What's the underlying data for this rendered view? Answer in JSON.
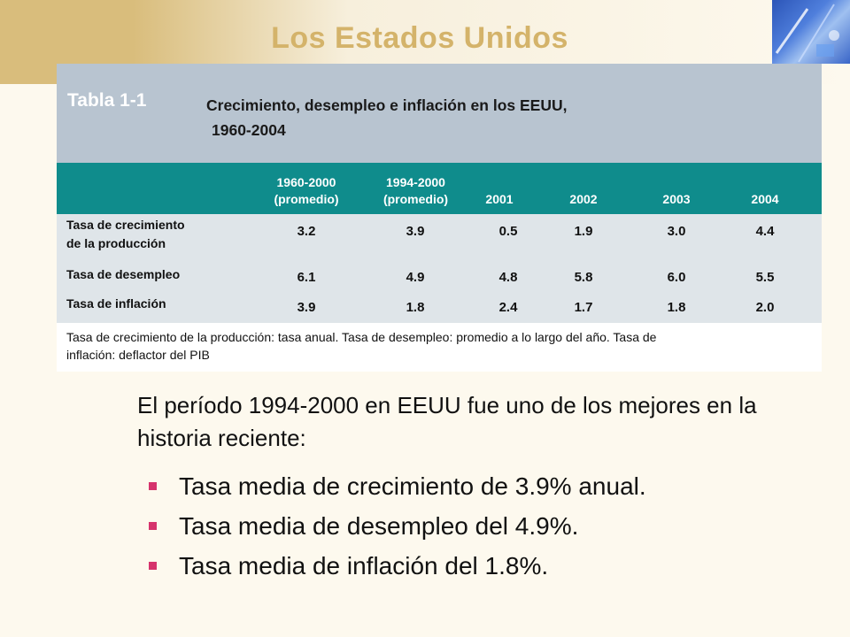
{
  "slide": {
    "title": "Los Estados Unidos"
  },
  "table": {
    "label": "Tabla 1-1",
    "title_line1": "Crecimiento, desempleo e inflación en los EEUU,",
    "title_line2": "1960-2004",
    "columns": [
      "1960-2000\n(promedio)",
      "1994-2000\n(promedio)",
      "2001",
      "2002",
      "2003",
      "2004"
    ],
    "rows": [
      {
        "label": "Tasa de crecimiento\nde la producción",
        "values": [
          "3.2",
          "3.9",
          "0.5",
          "1.9",
          "3.0",
          "4.4"
        ]
      },
      {
        "label": "Tasa de desempleo",
        "values": [
          "6.1",
          "4.9",
          "4.8",
          "5.8",
          "6.0",
          "5.5"
        ]
      },
      {
        "label": "Tasa de inflación",
        "values": [
          "3.9",
          "1.8",
          "2.4",
          "1.7",
          "1.8",
          "2.0"
        ]
      }
    ],
    "note": "Tasa de crecimiento de la producción: tasa anual. Tasa de desempleo: promedio a lo largo del año. Tasa de inflación: deflactor del PIB"
  },
  "body": {
    "intro": "El período 1994-2000 en EEUU fue uno de los mejores en la historia reciente:",
    "bullets": [
      "Tasa media de crecimiento de 3.9% anual.",
      "Tasa media de desempleo del 4.9%.",
      "Tasa media de inflación del 1.8%."
    ]
  },
  "colors": {
    "title": "#d4b36a",
    "header": "#0f8c8c",
    "caption": "#b8c4d0",
    "bullet": "#d6336c"
  },
  "icons": {
    "bullet": "square-bullet-icon",
    "corner": "decorative-corner-art"
  }
}
